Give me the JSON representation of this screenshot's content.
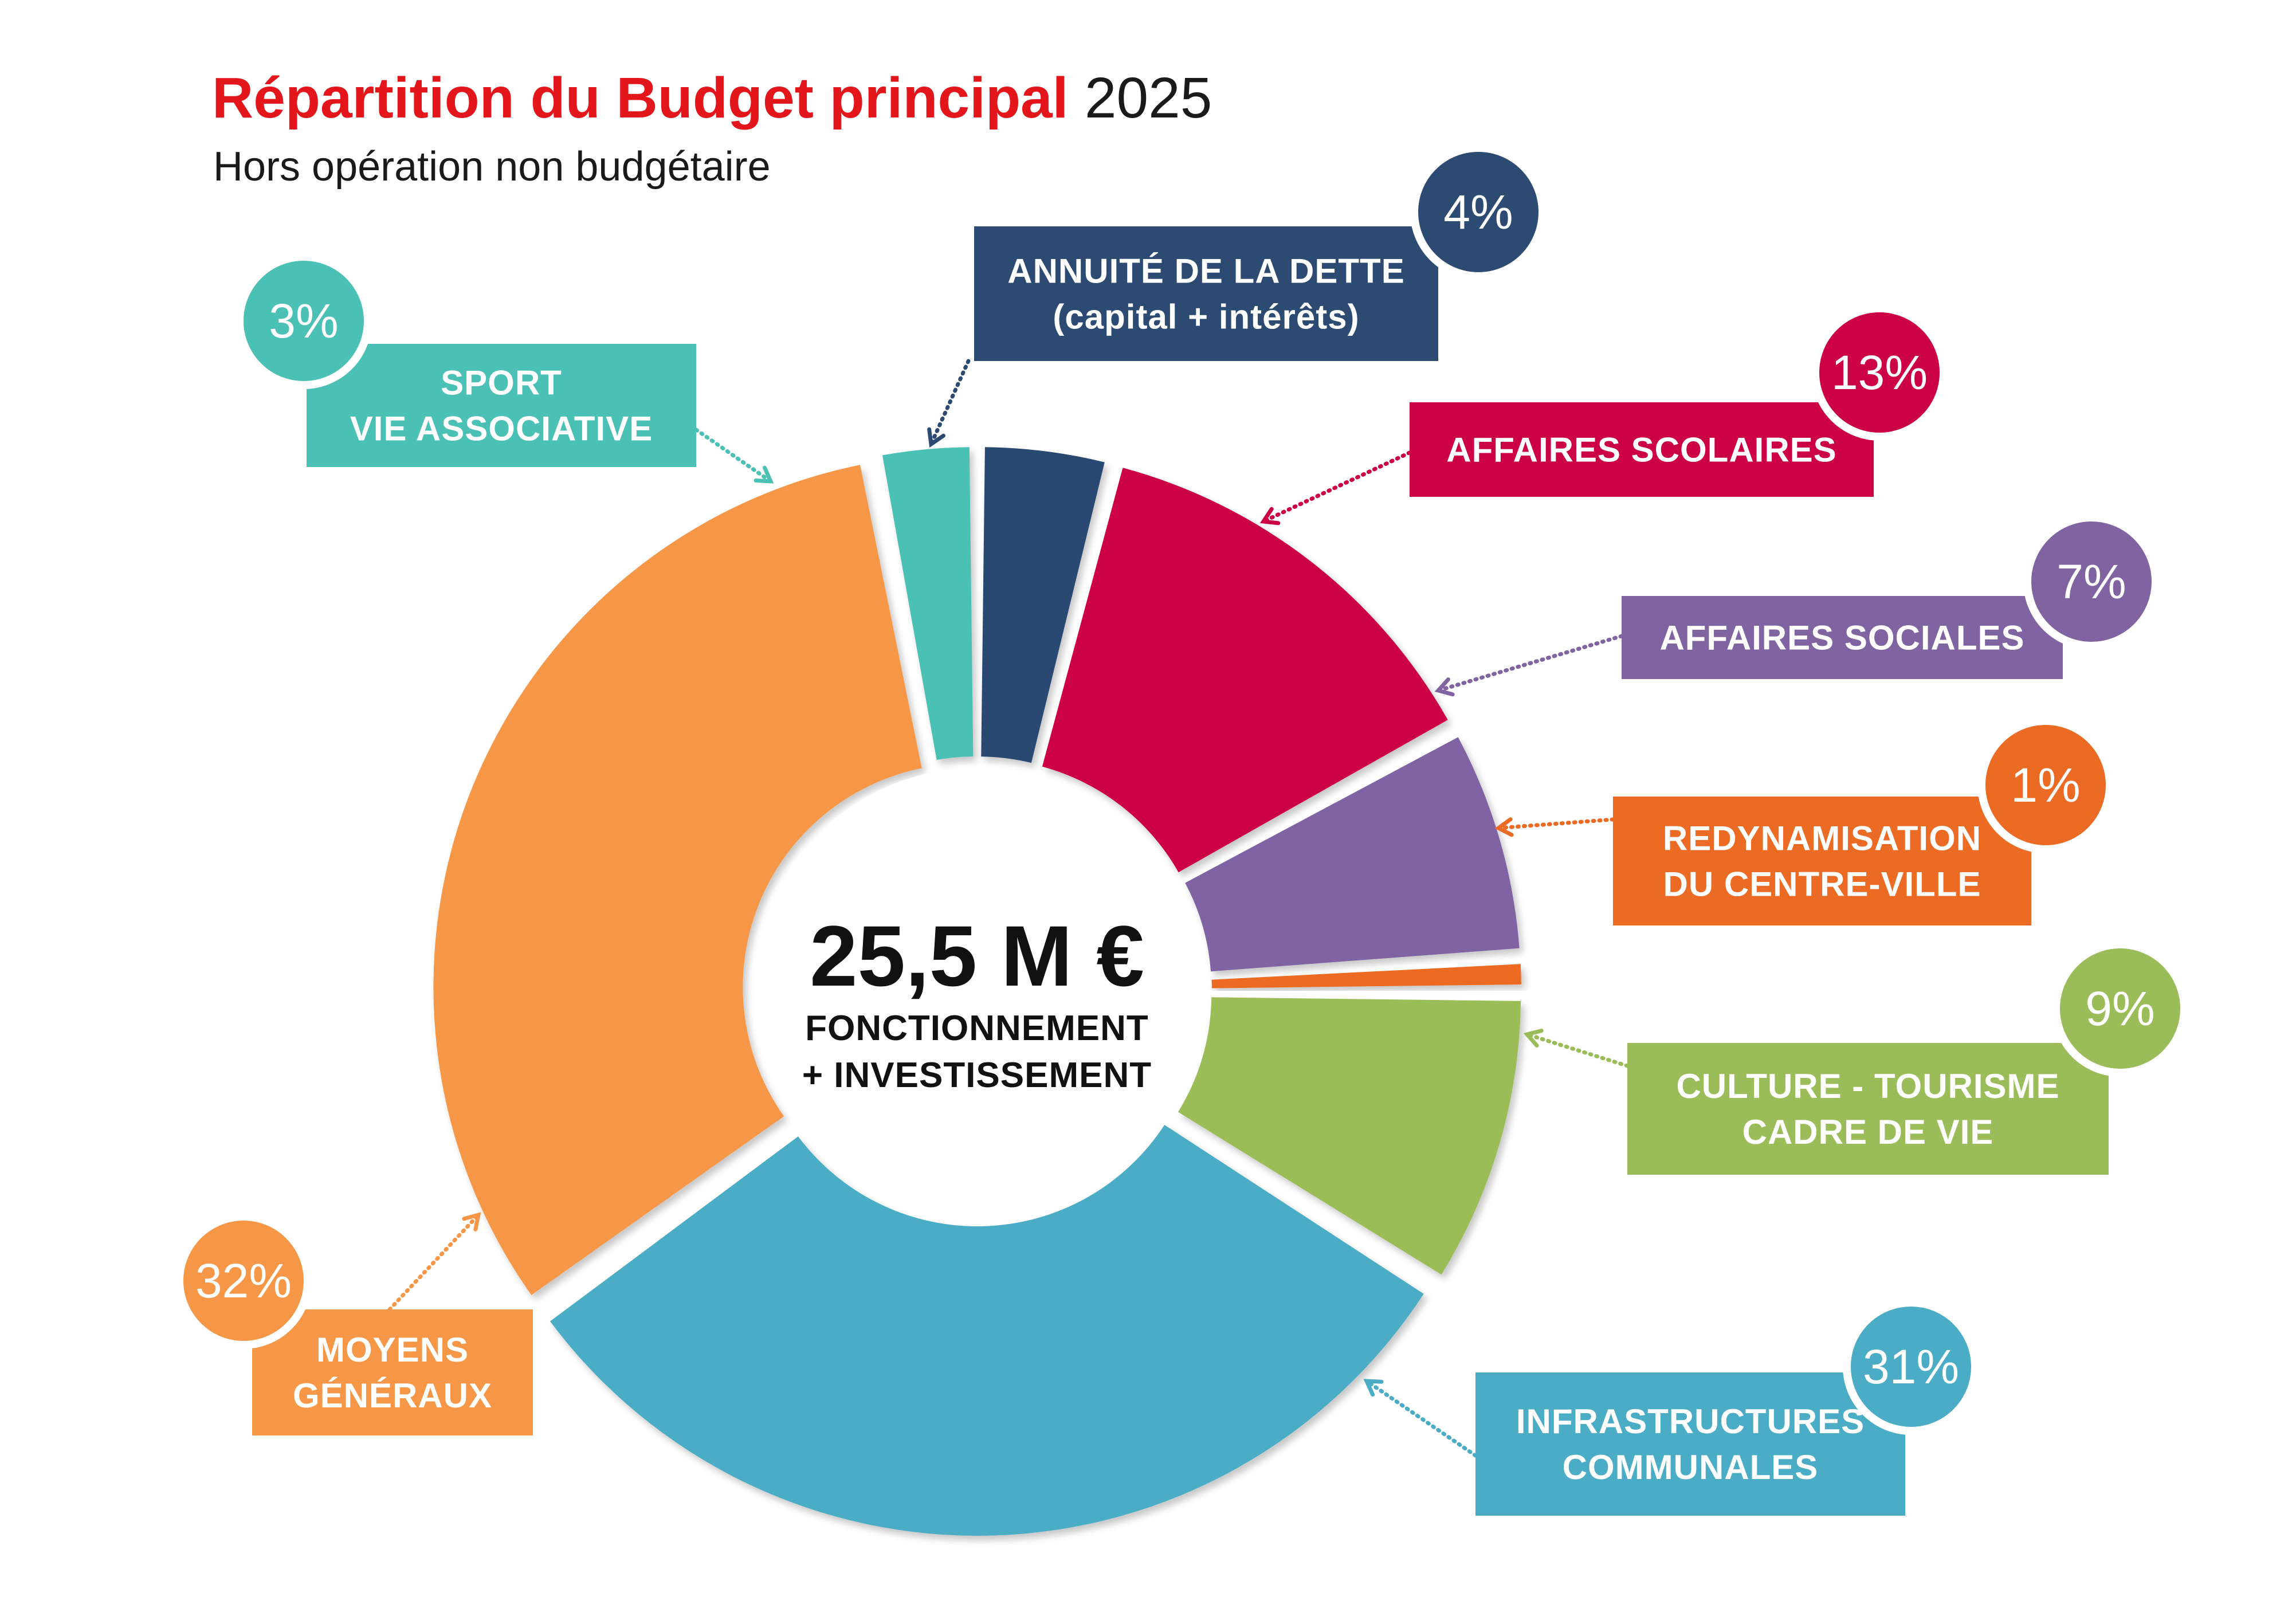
{
  "header": {
    "title_red": "Répartition du Budget principal",
    "title_year": "2025",
    "subtitle": "Hors opération non budgétaire",
    "title_color": "#e3161b"
  },
  "center": {
    "amount": "25,5 M €",
    "line1": "FONCTIONNEMENT",
    "line2": "+ INVESTISSEMENT"
  },
  "chart_data": {
    "type": "pie",
    "style": "donut",
    "title": "Répartition du Budget principal 2025",
    "subtitle": "Hors opération non budgétaire",
    "total_label": "25,5 M €",
    "unit": "%",
    "slices": [
      {
        "key": "dette",
        "label_lines": [
          "ANNUITÉ DE LA DETTE",
          "(capital + intérêts)"
        ],
        "value": 4,
        "value_label": "4%",
        "color": "#2c4a72"
      },
      {
        "key": "scolaires",
        "label_lines": [
          "AFFAIRES SCOLAIRES"
        ],
        "value": 13,
        "value_label": "13%",
        "color": "#cc0044"
      },
      {
        "key": "sociales",
        "label_lines": [
          "AFFAIRES SOCIALES"
        ],
        "value": 7,
        "value_label": "7%",
        "color": "#8064a2"
      },
      {
        "key": "redyn",
        "label_lines": [
          "REDYNAMISATION",
          "DU CENTRE-VILLE"
        ],
        "value": 1,
        "value_label": "1%",
        "color": "#ec6b24"
      },
      {
        "key": "culture",
        "label_lines": [
          "CULTURE - TOURISME",
          "CADRE DE VIE"
        ],
        "value": 9,
        "value_label": "9%",
        "color": "#9bbd59"
      },
      {
        "key": "infra",
        "label_lines": [
          "INFRASTRUCTURES",
          "COMMUNALES"
        ],
        "value": 31,
        "value_label": "31%",
        "color": "#4bacc6"
      },
      {
        "key": "moyens",
        "label_lines": [
          "MOYENS",
          "GÉNÉRAUX"
        ],
        "value": 32,
        "value_label": "32%",
        "color": "#f59746"
      },
      {
        "key": "sport",
        "label_lines": [
          "SPORT",
          "VIE ASSOCIATIVE"
        ],
        "value": 3,
        "value_label": "3%",
        "color": "#4bc0b5"
      }
    ]
  }
}
